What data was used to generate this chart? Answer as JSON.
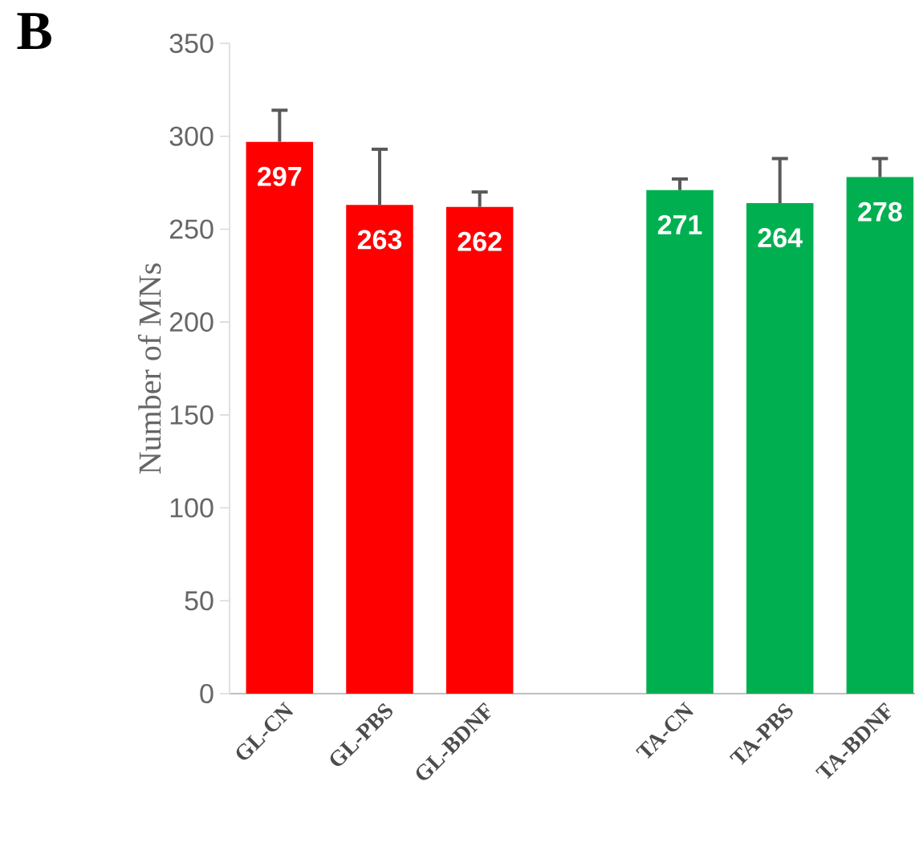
{
  "chart_data": {
    "type": "bar",
    "annotations": [
      "B"
    ],
    "ylabel": "Number of MNs",
    "categories": [
      "GL-CN",
      "GL-PBS",
      "GL-BDNF",
      null,
      "TA-CN",
      "TA-PBS",
      "TA-BDNF"
    ],
    "values": [
      297,
      263,
      262,
      null,
      271,
      264,
      278
    ],
    "errors": [
      [
        297,
        314
      ],
      [
        263,
        293
      ],
      [
        262,
        270
      ],
      null,
      [
        271,
        277
      ],
      [
        264,
        288
      ],
      [
        278,
        288
      ]
    ],
    "colors": [
      "#ff0000",
      "#ff0000",
      "#ff0000",
      null,
      "#00b050",
      "#00b050",
      "#00b050"
    ],
    "data_labels": true,
    "ylim": [
      0,
      350
    ],
    "yticks": [
      0,
      50,
      100,
      150,
      200,
      250,
      300,
      350
    ],
    "grid": false
  }
}
